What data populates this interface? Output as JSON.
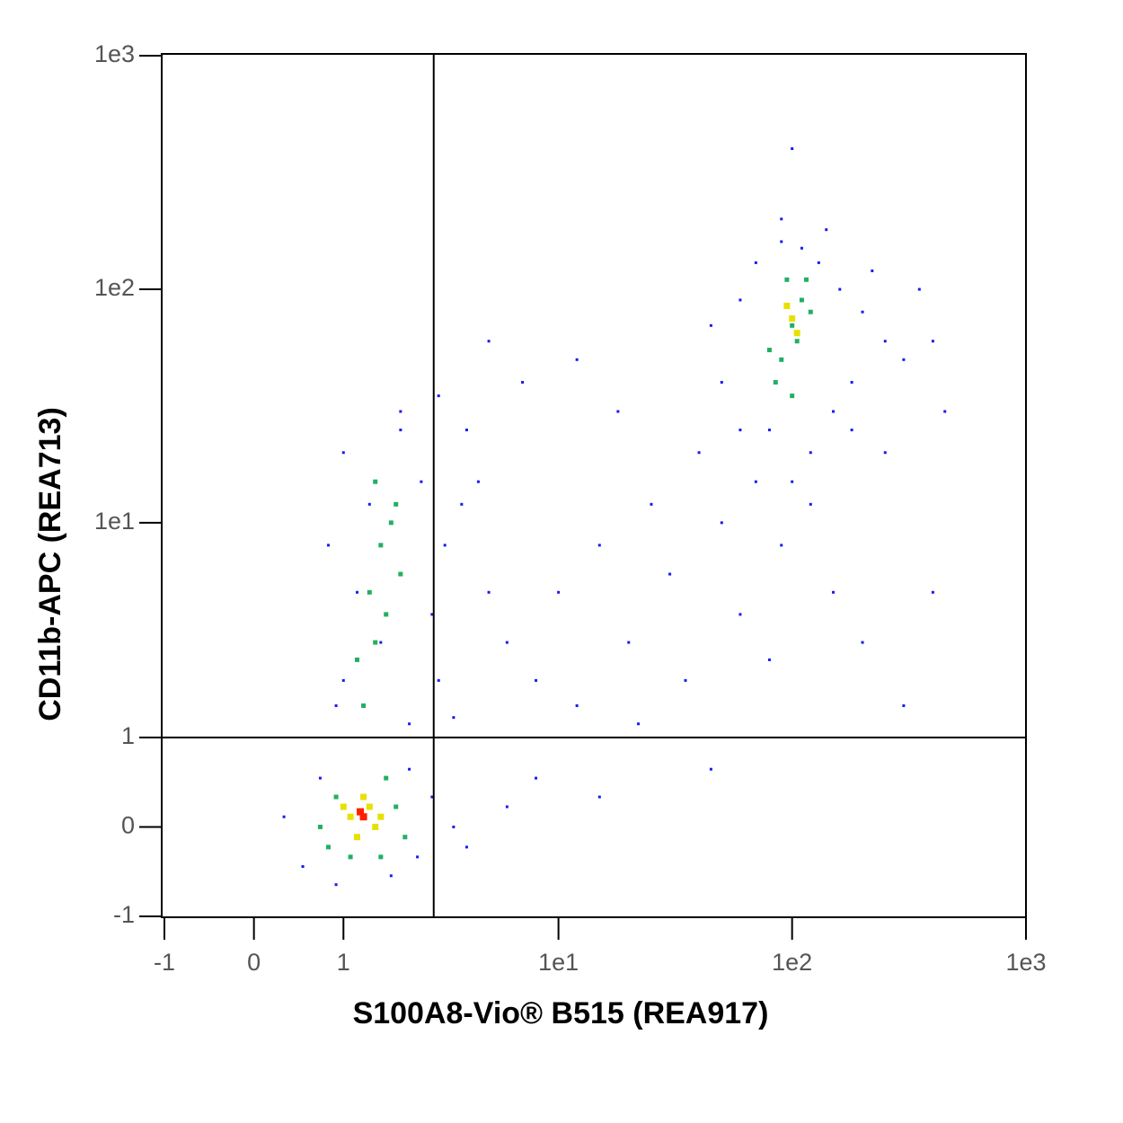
{
  "chart_data": {
    "type": "scatter",
    "x_label": "S100A8-Vio® B515 (REA917)",
    "y_label": "CD11b-APC (REA713)",
    "xscale": "asinh",
    "yscale": "asinh",
    "xlim": [
      -1,
      1000
    ],
    "ylim": [
      -1,
      1000
    ],
    "xticks": [
      -1,
      0,
      1,
      {
        "value": 10,
        "label": "1e1"
      },
      {
        "value": 100,
        "label": "1e2"
      },
      {
        "value": 1000,
        "label": "1e3"
      }
    ],
    "yticks": [
      -1,
      0,
      1,
      {
        "value": 10,
        "label": "1e1"
      },
      {
        "value": 100,
        "label": "1e2"
      },
      {
        "value": 1000,
        "label": "1e3"
      }
    ],
    "quadrant": {
      "x": 2.85,
      "y": 1
    },
    "series": [
      {
        "color": "#1a1af0",
        "x": [
          0.3,
          0.5,
          0.7,
          2.4,
          2.8,
          3.5,
          4,
          0.9,
          1.8,
          2.2,
          1.0,
          1.2,
          1.4,
          1.0,
          2.0,
          2.5,
          3.2,
          3.8,
          4.5,
          1.6,
          2.8,
          3.0,
          0.8,
          0.9,
          2.2,
          3.5,
          5,
          6,
          4,
          2.0,
          8,
          10,
          12,
          15,
          20,
          25,
          30,
          40,
          50,
          60,
          35,
          18,
          12,
          22,
          8,
          15,
          6,
          45,
          70,
          90,
          120,
          150,
          80,
          200,
          300,
          250,
          180,
          5,
          7,
          3,
          50,
          60,
          70,
          90,
          110,
          130,
          160,
          200,
          250,
          300,
          80,
          120,
          150,
          60,
          100,
          180,
          350,
          400,
          450,
          220,
          90,
          100,
          140,
          45,
          400
        ],
        "y": [
          0.1,
          -0.4,
          0.5,
          -0.3,
          0.3,
          0.0,
          -0.2,
          -0.6,
          -0.5,
          0.6,
          2,
          5,
          12,
          20,
          25,
          15,
          8,
          12,
          15,
          3,
          4,
          2,
          8,
          1.5,
          1.2,
          1.3,
          5,
          3,
          25,
          30,
          2,
          5,
          1.5,
          8,
          3,
          12,
          6,
          20,
          10,
          4,
          2,
          30,
          50,
          1.2,
          0.5,
          0.3,
          0.2,
          0.6,
          15,
          8,
          12,
          5,
          2.5,
          3,
          1.5,
          20,
          25,
          60,
          40,
          35,
          40,
          90,
          130,
          160,
          150,
          130,
          100,
          80,
          60,
          50,
          25,
          20,
          30,
          25,
          15,
          40,
          100,
          60,
          30,
          120,
          200,
          400,
          180,
          70,
          5
        ]
      },
      {
        "color": "#22b060",
        "x": [
          1.3,
          1.5,
          1.4,
          1.6,
          1.8,
          1.5,
          1.7,
          1.2,
          2.0,
          1.9,
          0.7,
          0.9,
          1.9,
          1.6,
          1.1,
          2.1,
          0.8,
          1.7,
          90,
          100,
          110,
          95,
          85,
          105,
          120,
          80,
          100,
          115
        ],
        "y": [
          1.5,
          3,
          5,
          8,
          10,
          15,
          4,
          2.5,
          6,
          12,
          0,
          0.3,
          0.2,
          -0.3,
          -0.3,
          -0.1,
          -0.2,
          0.5,
          50,
          70,
          90,
          110,
          40,
          60,
          80,
          55,
          35,
          110
        ]
      },
      {
        "color": "#e8e000",
        "x": [
          1.1,
          1.3,
          1.5,
          1.2,
          1.4,
          1.0,
          1.6,
          100,
          95,
          105
        ],
        "y": [
          0.1,
          0.3,
          0.0,
          -0.1,
          0.2,
          0.2,
          0.1,
          75,
          85,
          65
        ]
      },
      {
        "color": "#ff2000",
        "x": [
          1.3,
          1.25
        ],
        "y": [
          0.1,
          0.15
        ]
      }
    ]
  }
}
